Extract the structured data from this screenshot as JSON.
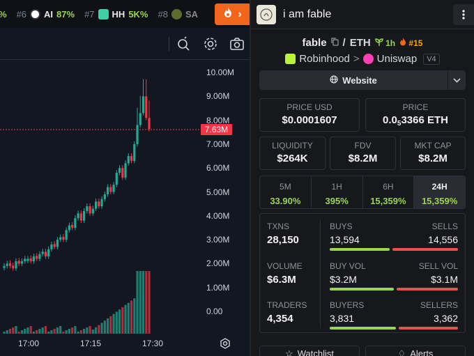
{
  "ticker": {
    "items": [
      {
        "rank": "",
        "name": "",
        "pct": "%"
      },
      {
        "rank": "#6",
        "name": "AI",
        "pct": "87%",
        "icon": "dog-avatar-icon",
        "color": "#ffffff"
      },
      {
        "rank": "#7",
        "name": "HH",
        "pct": "5K%",
        "icon": "robot-avatar-icon",
        "color": "#3ecfa6"
      },
      {
        "rank": "#8",
        "name": "SA",
        "pct": "",
        "icon": "token-avatar-icon",
        "color": "#5d6b2e"
      }
    ],
    "fire_button_icon": "flame-icon",
    "fire_button_arrow": "›"
  },
  "toolbar": {
    "icons": [
      "draw-tool-icon",
      "settings-gear-icon",
      "camera-icon"
    ]
  },
  "chart": {
    "y_ticks": [
      "10.00M",
      "9.00M",
      "8.00M",
      "7.00M",
      "6.00M",
      "5.00M",
      "4.00M",
      "3.00M",
      "2.00M",
      "1.00M",
      "0.00"
    ],
    "x_ticks": [
      "17:00",
      "17:15",
      "17:30"
    ],
    "current_price_label": "7.63M",
    "settings_icon": "gear-icon"
  },
  "chart_data": {
    "type": "candlestick",
    "y_axis_labels": [
      "10.00M",
      "9.00M",
      "8.00M",
      "7.00M",
      "6.00M",
      "5.00M",
      "4.00M",
      "3.00M",
      "2.00M",
      "1.00M",
      "0.00"
    ],
    "x_axis_labels": [
      "17:00",
      "17:15",
      "17:30"
    ],
    "last_price": "7.63M",
    "candles_close_approx": [
      1.9,
      2.0,
      1.9,
      1.8,
      2.1,
      2.0,
      2.1,
      2.2,
      2.2,
      2.1,
      2.3,
      2.2,
      2.4,
      2.5,
      2.3,
      2.6,
      2.8,
      2.7,
      3.0,
      3.1,
      3.0,
      3.4,
      3.6,
      3.5,
      3.9,
      4.1,
      3.8,
      4.2,
      4.4,
      4.1,
      4.3,
      4.6,
      4.4,
      4.7,
      4.9,
      5.2,
      5.0,
      5.3,
      5.8,
      6.0,
      5.6,
      6.2,
      6.5,
      6.3,
      7.0,
      7.8,
      8.3,
      9.0,
      8.1,
      7.63
    ],
    "candles_up": [
      1,
      1,
      0,
      0,
      1,
      0,
      1,
      1,
      1,
      0,
      1,
      0,
      1,
      1,
      0,
      1,
      1,
      0,
      1,
      1,
      0,
      1,
      1,
      0,
      1,
      1,
      0,
      1,
      1,
      0,
      1,
      1,
      0,
      1,
      1,
      1,
      0,
      1,
      1,
      1,
      0,
      1,
      1,
      0,
      1,
      1,
      1,
      1,
      0,
      0
    ]
  },
  "panel": {
    "header": {
      "avatar_icon": "token-avatar-icon",
      "title": "i am fable",
      "more_icon": "more-vertical-icon"
    },
    "pair": {
      "base": "fable",
      "copy_icon": "copy-icon",
      "separator": "/",
      "quote": "ETH",
      "age_icon": "sprout-icon",
      "age": "1h",
      "rank_icon": "flame-icon",
      "rank": "#15"
    },
    "chain": {
      "chain_icon": "robinhood-icon",
      "chain_name": "Robinhood",
      "arrow": ">",
      "dex_icon": "uniswap-icon",
      "dex_name": "Uniswap",
      "version": "V4"
    },
    "website": {
      "icon": "globe-icon",
      "label": "Website",
      "caret_icon": "chevron-down-icon"
    },
    "price_usd": {
      "label": "PRICE USD",
      "value": "$0.0001607"
    },
    "price_eth": {
      "label": "PRICE",
      "prefix": "0.0",
      "subscript": "5",
      "value": "3366 ETH"
    },
    "liquidity": {
      "label": "LIQUIDITY",
      "value": "$264K"
    },
    "fdv": {
      "label": "FDV",
      "value": "$8.2M"
    },
    "mkt_cap": {
      "label": "MKT CAP",
      "value": "$8.2M"
    },
    "timeframes": [
      {
        "label": "5M",
        "value": "33.90%"
      },
      {
        "label": "1H",
        "value": "395%"
      },
      {
        "label": "6H",
        "value": "15,359%"
      },
      {
        "label": "24H",
        "value": "15,359%"
      }
    ],
    "stats": {
      "txns": {
        "label": "TXNS",
        "value": "28,150"
      },
      "volume": {
        "label": "VOLUME",
        "value": "$6.3M"
      },
      "traders": {
        "label": "TRADERS",
        "value": "4,354"
      },
      "buys": {
        "label": "BUYS",
        "value": "13,594",
        "sells_label": "SELLS",
        "sells_value": "14,556",
        "buy_fraction": 0.48
      },
      "buy_vol": {
        "label": "BUY VOL",
        "value": "$3.2M",
        "sells_label": "SELL VOL",
        "sells_value": "$3.1M",
        "buy_fraction": 0.51
      },
      "buyers": {
        "label": "BUYERS",
        "value": "3,831",
        "sells_label": "SELLERS",
        "sells_value": "3,362",
        "buy_fraction": 0.53
      }
    },
    "bottom_buttons": [
      {
        "icon": "star-icon",
        "label": "Watchlist"
      },
      {
        "icon": "bell-icon",
        "label": "Alerts"
      }
    ]
  },
  "colors": {
    "up": "#22ab94",
    "down": "#f23645",
    "accent_green": "#9ad451",
    "fire": "#f2651c"
  }
}
